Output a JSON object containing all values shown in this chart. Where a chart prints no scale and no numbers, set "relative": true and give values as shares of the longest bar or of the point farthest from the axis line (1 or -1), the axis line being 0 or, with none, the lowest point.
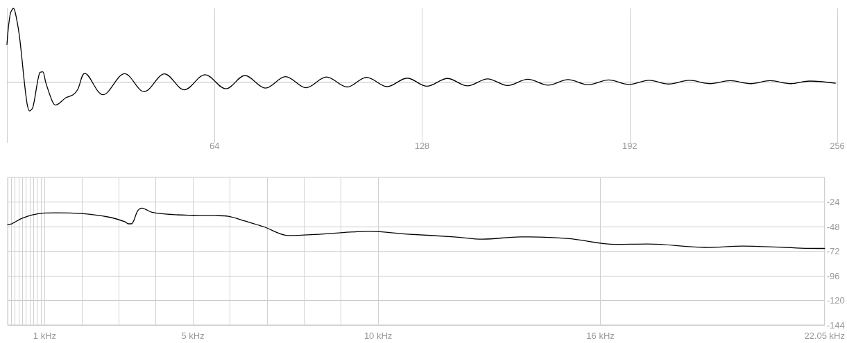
{
  "chart_data": [
    {
      "type": "line",
      "relative": true,
      "tick_labels": "x",
      "grid": "x",
      "marker": "none",
      "line_style": "solid",
      "xlim": [
        0,
        256
      ],
      "xticks": [
        {
          "value": 0,
          "label": null
        },
        64,
        128,
        192,
        256
      ],
      "series": [
        {
          "color": "#000000",
          "x": [
            0,
            1,
            2,
            3,
            4,
            6,
            7,
            8,
            10,
            11,
            12,
            14,
            15,
            18.2,
            20.4,
            21.8,
            24,
            29.6,
            36.3,
            42.3,
            48.6,
            54.7,
            61.1,
            67.5,
            73.4,
            79.7,
            85.9,
            92.2,
            98.5,
            104.9,
            110.9,
            117.2,
            123.4,
            129.5,
            135.8,
            142,
            148.2,
            154.4,
            160.6,
            166.9,
            173,
            179.2,
            185.5,
            191.8,
            198,
            204,
            210.4,
            216.7,
            223,
            229.3,
            235.3,
            241.6,
            247.5,
            255.4
          ],
          "values": [
            0.51,
            0.92,
            1,
            0.85,
            0.57,
            -0.23,
            -0.39,
            -0.34,
            0.12,
            0.14,
            -0.01,
            -0.26,
            -0.31,
            -0.21,
            -0.17,
            -0.1,
            0.12,
            -0.17,
            0.115,
            -0.128,
            0.112,
            -0.103,
            0.1,
            -0.09,
            0.09,
            -0.08,
            0.075,
            -0.075,
            0.07,
            -0.065,
            0.065,
            -0.06,
            0.055,
            -0.055,
            0.05,
            -0.05,
            0.045,
            -0.045,
            0.04,
            -0.04,
            0.035,
            -0.035,
            0.03,
            -0.03,
            0.025,
            -0.025,
            0.025,
            -0.02,
            0.02,
            -0.02,
            0.02,
            -0.02,
            0.015,
            -0.015
          ]
        }
      ]
    },
    {
      "type": "line",
      "grid": true,
      "marker": "none",
      "line_style": "solid",
      "xlim": [
        0,
        22.05
      ],
      "xticks": [
        {
          "value": 0,
          "label": null
        },
        {
          "value": 0.1,
          "label": null
        },
        {
          "value": 0.2,
          "label": null
        },
        {
          "value": 0.3,
          "label": null
        },
        {
          "value": 0.4,
          "label": null
        },
        {
          "value": 0.5,
          "label": null
        },
        {
          "value": 0.6,
          "label": null
        },
        {
          "value": 0.7,
          "label": null
        },
        {
          "value": 0.8,
          "label": null
        },
        {
          "value": 0.9,
          "label": null
        },
        {
          "value": 1,
          "label": "1 kHz"
        },
        {
          "value": 2,
          "label": null
        },
        {
          "value": 3,
          "label": null
        },
        {
          "value": 4,
          "label": null
        },
        {
          "value": 5,
          "label": "5 kHz"
        },
        {
          "value": 6,
          "label": null
        },
        {
          "value": 7,
          "label": null
        },
        {
          "value": 8,
          "label": null
        },
        {
          "value": 9,
          "label": null
        },
        {
          "value": 10,
          "label": "10 kHz"
        },
        {
          "value": 16,
          "label": "16 kHz"
        },
        {
          "value": 22.05,
          "label": "22.05 kHz"
        }
      ],
      "ylim": [
        -144,
        0
      ],
      "yticks": [
        -144,
        -120,
        -96,
        -72,
        -48,
        -24
      ],
      "series": [
        {
          "color": "#000000",
          "x": [
            0,
            0.109,
            0.176,
            0.384,
            0.646,
            1,
            1.305,
            2,
            2.724,
            3.172,
            3.255,
            3.339,
            3.51,
            3.626,
            3.714,
            3.896,
            4.46,
            5,
            5.6,
            5.954,
            6.42,
            6.905,
            7.575,
            8.46,
            9.78,
            10.777,
            12.043,
            12.82,
            13.84,
            15.15,
            16.4,
            17.28,
            18.89,
            19.84,
            21.4,
            22.05
          ],
          "values": [
            -46,
            -45.3,
            -44,
            -40,
            -36.7,
            -34.7,
            -34.5,
            -35.3,
            -38.7,
            -43.3,
            -45.3,
            -45.3,
            -32.7,
            -30,
            -31,
            -34,
            -36.3,
            -37,
            -37.3,
            -38,
            -42.7,
            -48,
            -56.7,
            -55.3,
            -52.7,
            -55.3,
            -58,
            -60.3,
            -58,
            -59.7,
            -65.3,
            -65,
            -68.3,
            -67,
            -69,
            -69.3
          ]
        }
      ]
    }
  ]
}
